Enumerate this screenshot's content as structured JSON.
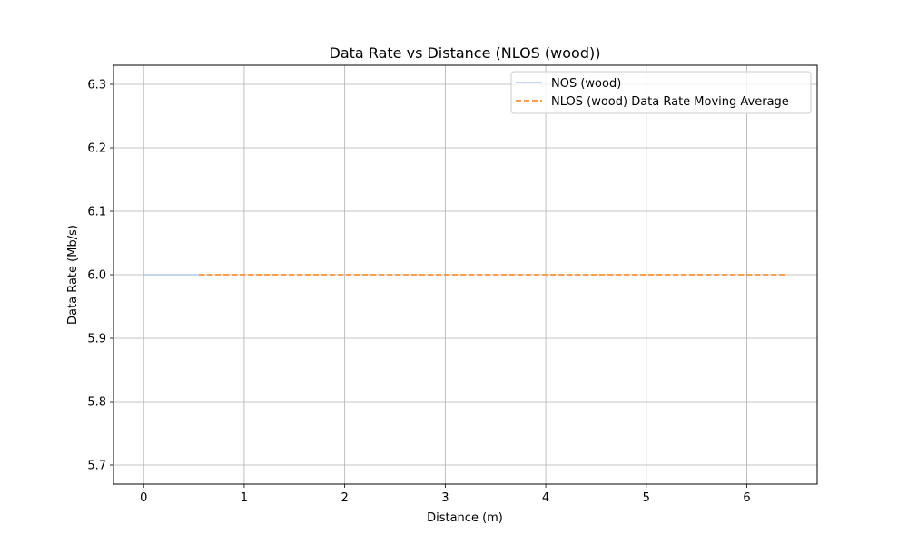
{
  "chart_data": {
    "type": "line",
    "title": "Data Rate vs Distance (NLOS (wood))",
    "xlabel": "Distance (m)",
    "ylabel": "Data Rate (Mb/s)",
    "xlim": [
      -0.3,
      6.7
    ],
    "ylim": [
      5.67,
      6.33
    ],
    "xticks": [
      0,
      1,
      2,
      3,
      4,
      5,
      6
    ],
    "yticks": [
      5.7,
      5.8,
      5.9,
      6.0,
      6.1,
      6.2,
      6.3
    ],
    "grid": true,
    "legend_position": "top-right",
    "series": [
      {
        "name": "NOS (wood)",
        "color": "#aec7e8",
        "style": "solid",
        "x": [
          0.0,
          0.55
        ],
        "y": [
          6.0,
          6.0
        ]
      },
      {
        "name": "NLOS (wood) Data Rate Moving Average",
        "color": "#ff7f0e",
        "style": "dashed",
        "x": [
          0.55,
          1.0,
          2.0,
          3.0,
          4.0,
          5.0,
          6.0,
          6.38
        ],
        "y": [
          6.0,
          6.0,
          6.0,
          6.0,
          6.0,
          6.0,
          6.0,
          6.0
        ]
      }
    ]
  }
}
